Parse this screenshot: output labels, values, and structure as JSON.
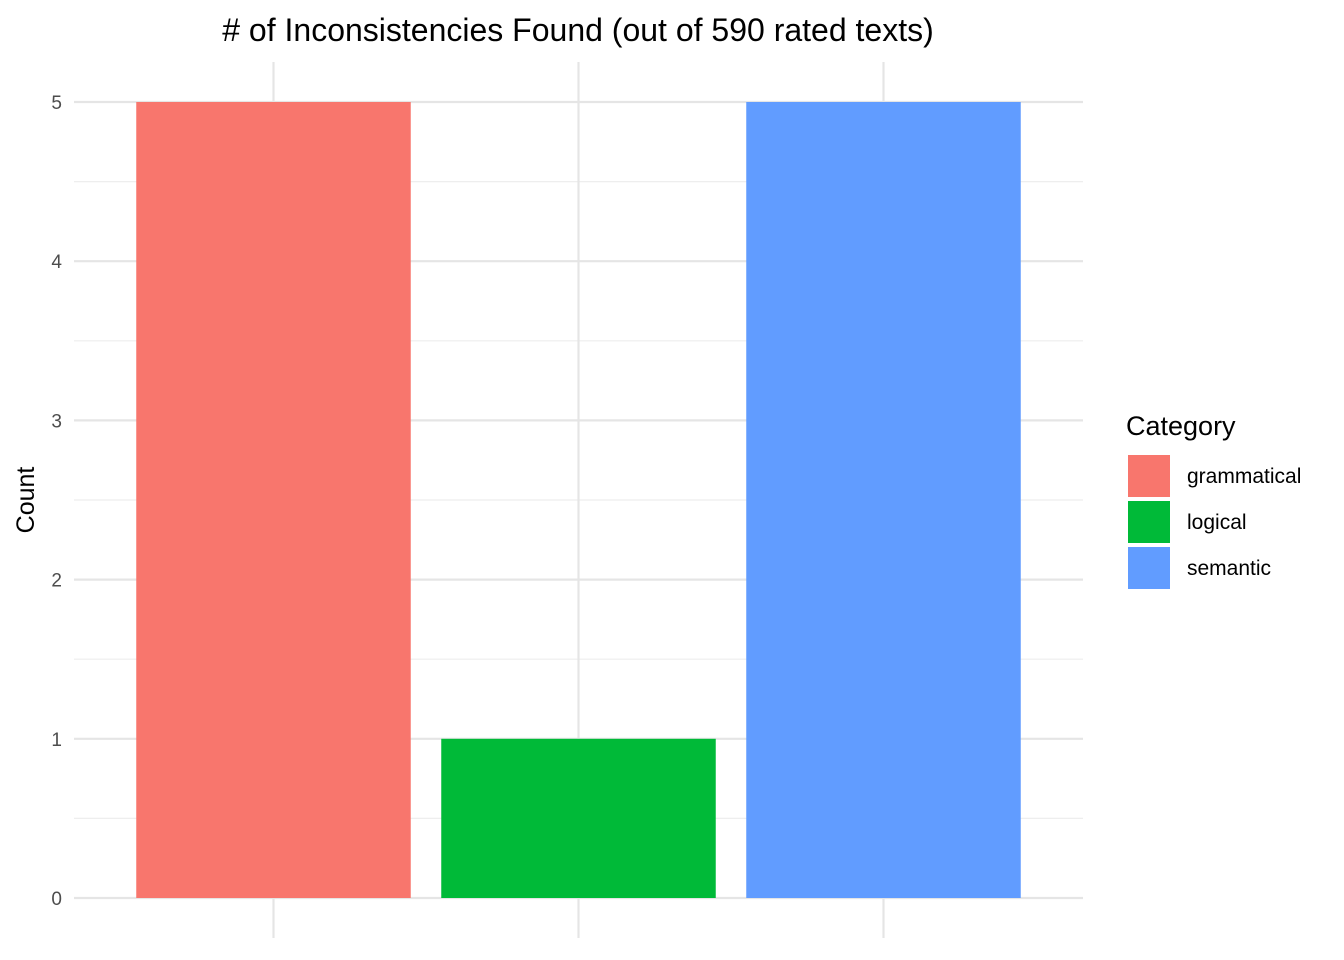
{
  "chart_data": {
    "type": "bar",
    "title": "# of Inconsistencies Found (out of 590 rated texts)",
    "xlabel": "",
    "ylabel": "Count",
    "categories": [
      "grammatical",
      "logical",
      "semantic"
    ],
    "values": [
      5,
      1,
      5
    ],
    "colors": [
      "#F8766D",
      "#00BA38",
      "#619CFF"
    ],
    "ylim": [
      0,
      5
    ],
    "yticks": [
      "0",
      "1",
      "2",
      "3",
      "4",
      "5"
    ],
    "grid": true,
    "legend": {
      "title": "Category",
      "placement": "right",
      "items": [
        "grammatical",
        "logical",
        "semantic"
      ]
    }
  }
}
